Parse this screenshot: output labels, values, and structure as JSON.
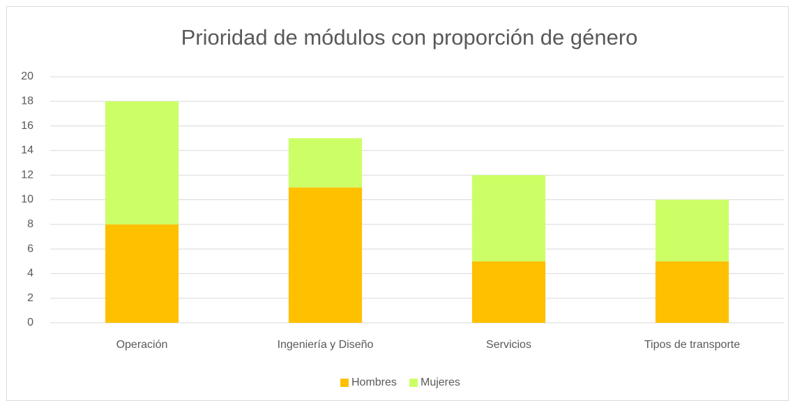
{
  "chart_data": {
    "type": "stacked_bar",
    "title": "Prioridad de módulos con proporción de género",
    "categories": [
      "Operación",
      "Ingeniería y Diseño",
      "Servicios",
      "Tipos de transporte"
    ],
    "series": [
      {
        "name": "Hombres",
        "color": "#ffc000",
        "values": [
          8,
          11,
          5,
          5
        ]
      },
      {
        "name": "Mujeres",
        "color": "#ccff66",
        "values": [
          10,
          4,
          7,
          5
        ]
      }
    ],
    "ylim": [
      0,
      20
    ],
    "yticks": [
      0,
      2,
      4,
      6,
      8,
      10,
      12,
      14,
      16,
      18,
      20
    ],
    "grid": true,
    "legend": "bottom"
  }
}
